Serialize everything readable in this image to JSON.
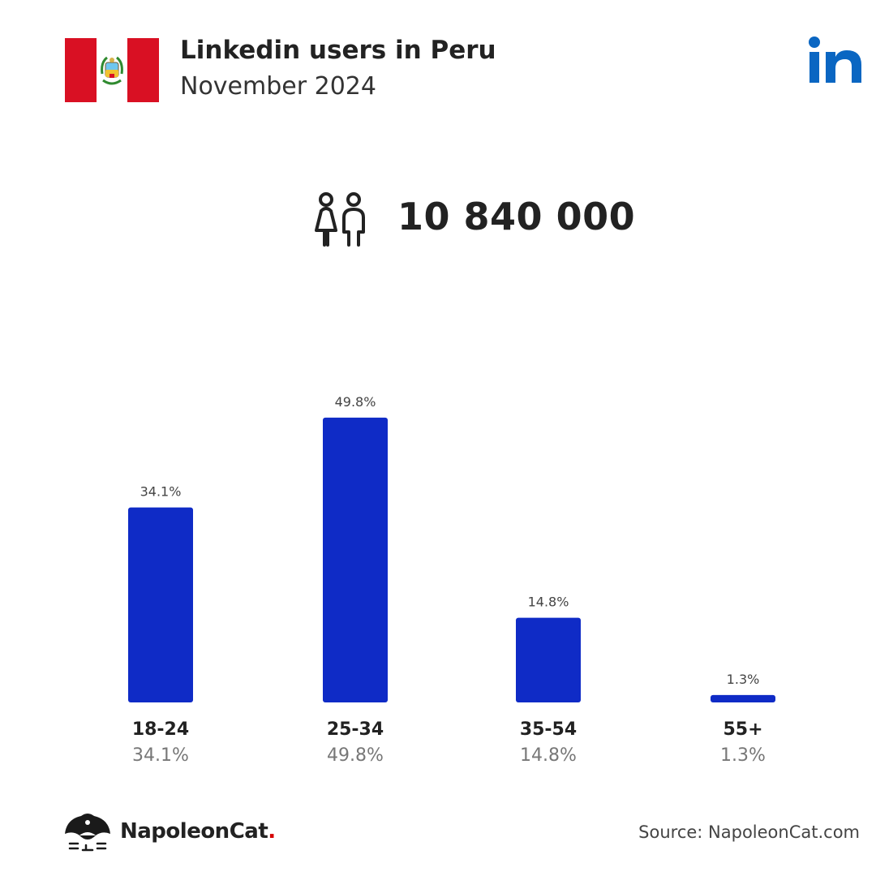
{
  "header": {
    "title": "Linkedin users in Peru",
    "subtitle": "November 2024",
    "flag_icon": "peru-flag-icon",
    "brand_icon": "linkedin-logo-icon"
  },
  "summary": {
    "icon": "users-icon",
    "total_users": "10 840 000"
  },
  "colors": {
    "bar": "#0f2bc6",
    "linkedin_blue": "#0a66c2",
    "flag_red": "#d91023",
    "footer_dot": "#d50000"
  },
  "chart_data": {
    "type": "bar",
    "categories": [
      "18-24",
      "25-34",
      "35-54",
      "55+"
    ],
    "values": [
      34.1,
      49.8,
      14.8,
      1.3
    ],
    "data_labels": [
      "34.1%",
      "49.8%",
      "14.8%",
      "1.3%"
    ],
    "unit": "%",
    "grid": false
  },
  "footer": {
    "brand_name": "NapoleonCat",
    "brand_dot": ".",
    "brand_icon": "napoleoncat-logo-icon",
    "source": "Source: NapoleonCat.com"
  }
}
